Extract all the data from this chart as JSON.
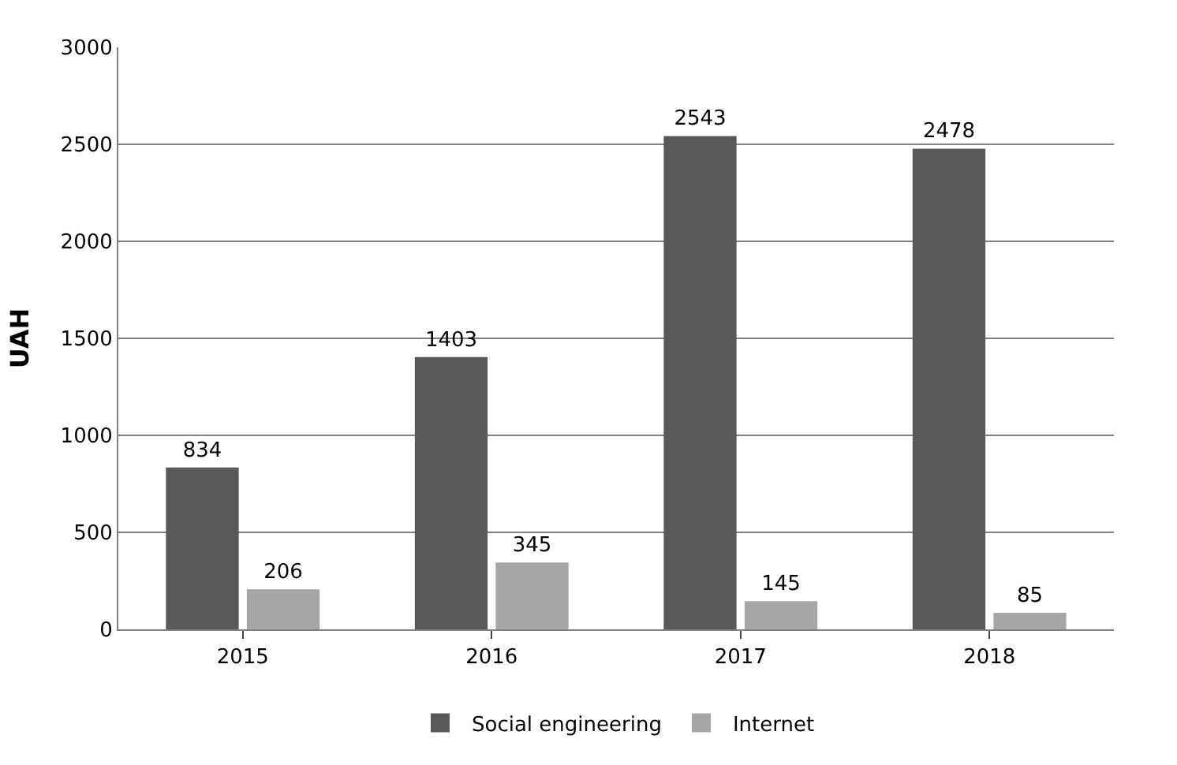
{
  "chart_data": {
    "type": "bar",
    "ylabel": "UAH",
    "categories": [
      "2015",
      "2016",
      "2017",
      "2018"
    ],
    "series": [
      {
        "name": "Social engineering",
        "color": "#595959",
        "values": [
          834,
          1403,
          2543,
          2478
        ]
      },
      {
        "name": "Internet",
        "color": "#a6a6a6",
        "values": [
          206,
          345,
          145,
          85
        ]
      }
    ],
    "ylim": [
      0,
      3000
    ],
    "yticks": [
      0,
      500,
      1000,
      1500,
      2000,
      2500,
      3000
    ],
    "grid": "y",
    "legend": "bottom",
    "data_labels": true
  }
}
